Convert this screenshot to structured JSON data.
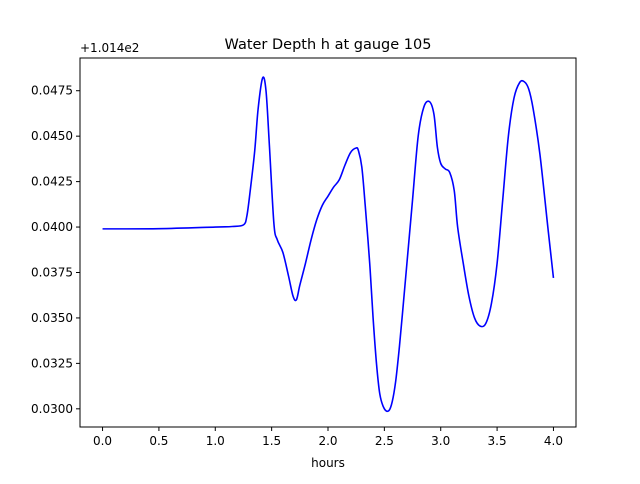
{
  "chart_data": {
    "type": "line",
    "title": "Water Depth h at gauge 105",
    "xlabel": "hours",
    "ylabel": "",
    "offset_label": "+1.014e2",
    "xlim": [
      -0.2,
      4.2
    ],
    "ylim": [
      0.029,
      0.0493
    ],
    "xticks": [
      0.0,
      0.5,
      1.0,
      1.5,
      2.0,
      2.5,
      3.0,
      3.5,
      4.0
    ],
    "xtick_labels": [
      "0.0",
      "0.5",
      "1.0",
      "1.5",
      "2.0",
      "2.5",
      "3.0",
      "3.5",
      "4.0"
    ],
    "yticks": [
      0.03,
      0.0325,
      0.035,
      0.0375,
      0.04,
      0.0425,
      0.045,
      0.0475
    ],
    "ytick_labels": [
      "0.0300",
      "0.0325",
      "0.0350",
      "0.0375",
      "0.0400",
      "0.0425",
      "0.0450",
      "0.0475"
    ],
    "grid": false,
    "colors": {
      "line": "#0000ff",
      "axes": "#000000",
      "background": "#ffffff"
    },
    "series": [
      {
        "x": [
          0.0,
          0.5,
          1.0,
          1.15,
          1.25,
          1.28,
          1.31,
          1.35,
          1.38,
          1.42,
          1.45,
          1.48,
          1.52,
          1.55,
          1.6,
          1.65,
          1.69,
          1.72,
          1.75,
          1.8,
          1.85,
          1.9,
          1.95,
          2.0,
          2.05,
          2.1,
          2.15,
          2.2,
          2.25,
          2.27,
          2.3,
          2.33,
          2.37,
          2.4,
          2.43,
          2.46,
          2.5,
          2.54,
          2.57,
          2.6,
          2.63,
          2.66,
          2.7,
          2.75,
          2.8,
          2.85,
          2.9,
          2.94,
          2.97,
          3.0,
          3.04,
          3.08,
          3.12,
          3.15,
          3.2,
          3.25,
          3.3,
          3.35,
          3.4,
          3.45,
          3.5,
          3.55,
          3.6,
          3.65,
          3.7,
          3.74,
          3.78,
          3.82,
          3.88,
          3.95,
          4.0
        ],
        "y": [
          0.0399,
          0.03991,
          0.04,
          0.04003,
          0.04012,
          0.0406,
          0.042,
          0.0442,
          0.0465,
          0.0482,
          0.0475,
          0.0445,
          0.0402,
          0.0393,
          0.0386,
          0.0373,
          0.0362,
          0.036,
          0.0368,
          0.038,
          0.0393,
          0.0404,
          0.0412,
          0.0417,
          0.0422,
          0.0426,
          0.0434,
          0.0441,
          0.04435,
          0.0442,
          0.0433,
          0.0412,
          0.038,
          0.035,
          0.0325,
          0.0308,
          0.03,
          0.0299,
          0.0304,
          0.0315,
          0.0332,
          0.0352,
          0.038,
          0.0415,
          0.045,
          0.0466,
          0.0469,
          0.0462,
          0.0444,
          0.0435,
          0.0432,
          0.043,
          0.042,
          0.04,
          0.038,
          0.0362,
          0.035,
          0.03455,
          0.0347,
          0.0358,
          0.038,
          0.0415,
          0.045,
          0.0471,
          0.04795,
          0.048,
          0.0476,
          0.0465,
          0.044,
          0.04,
          0.0372
        ]
      }
    ]
  }
}
